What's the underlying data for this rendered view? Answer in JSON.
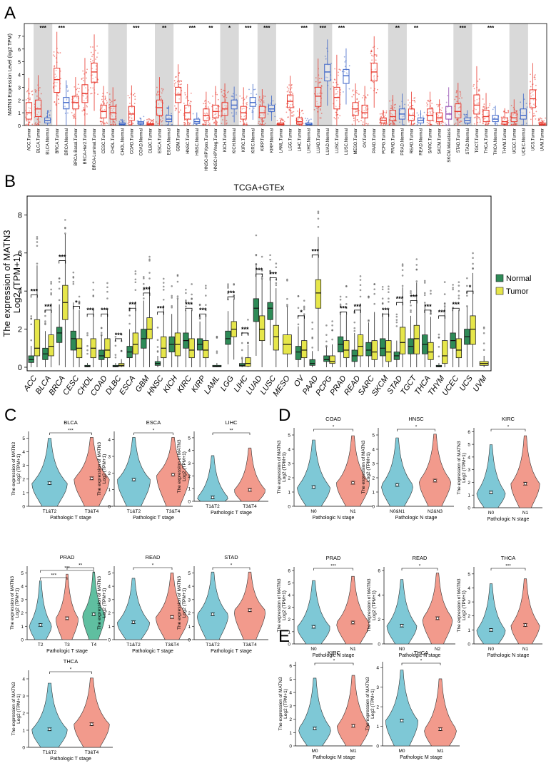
{
  "panel_labels": {
    "a": "A",
    "b": "B",
    "c": "C",
    "d": "D",
    "e": "E"
  },
  "colors": {
    "tumor_a": "#e8392e",
    "normal_a": "#3a63c7",
    "skcm_meta": "#8e44ad",
    "shade": "#d9d9d9",
    "normal_b": "#2e8b57",
    "tumor_b": "#e6e64a",
    "violin_blue": "#7ec8d6",
    "violin_red": "#f29a8c"
  },
  "chart_data": [
    {
      "id": "A",
      "type": "box",
      "ylabel": "MATN3 Expression Level (log2 TPM)",
      "ylim": [
        0,
        8
      ],
      "yticks": [
        0,
        1,
        2,
        3,
        4,
        5,
        6,
        7
      ],
      "categories": [
        "ACC.Tumor",
        "BLCA.Tumor",
        "BLCA.Normal",
        "BRCA.Tumor",
        "BRCA.Normal",
        "BRCA-Basal.Tumor",
        "BRCA-Her2.Tumor",
        "BRCA-Luminal.Tumor",
        "CESC.Tumor",
        "CHOL.Tumor",
        "CHOL.Normal",
        "COAD.Tumor",
        "COAD.Normal",
        "DLBC.Tumor",
        "ESCA.Tumor",
        "ESCA.Normal",
        "GBM.Tumor",
        "HNSC.Tumor",
        "HNSC.Normal",
        "HNSC-HPVpos.Tumor",
        "HNSC-HPVneg.Tumor",
        "KICH.Tumor",
        "KICH.Normal",
        "KIRC.Tumor",
        "KIRC.Normal",
        "KIRP.Tumor",
        "KIRP.Normal",
        "LAML.Tumor",
        "LGG.Tumor",
        "LIHC.Tumor",
        "LIHC.Normal",
        "LUAD.Tumor",
        "LUAD.Normal",
        "LUSC.Tumor",
        "LUSC.Normal",
        "MESO.Tumor",
        "OV.Tumor",
        "PAAD.Tumor",
        "PCPG.Tumor",
        "PRAD.Tumor",
        "PRAD.Normal",
        "READ.Tumor",
        "READ.Normal",
        "SARC.Tumor",
        "SKCM.Tumor",
        "SKCM.Metastasis",
        "STAD.Tumor",
        "STAD.Normal",
        "TGCT.Tumor",
        "THCA.Tumor",
        "THCA.Normal",
        "THYM.Tumor",
        "UCEC.Tumor",
        "UCEC.Normal",
        "UCS.Tumor",
        "UVM.Tumor"
      ],
      "kind": [
        "T",
        "T",
        "N",
        "T",
        "N",
        "T",
        "T",
        "T",
        "T",
        "T",
        "N",
        "T",
        "N",
        "T",
        "T",
        "N",
        "T",
        "T",
        "N",
        "T",
        "T",
        "T",
        "N",
        "T",
        "N",
        "T",
        "N",
        "T",
        "T",
        "T",
        "N",
        "T",
        "N",
        "T",
        "N",
        "T",
        "T",
        "T",
        "T",
        "T",
        "N",
        "T",
        "N",
        "T",
        "T",
        "M",
        "T",
        "N",
        "T",
        "T",
        "N",
        "T",
        "T",
        "N",
        "T",
        "T"
      ],
      "medians": [
        1.0,
        1.3,
        0.4,
        3.6,
        1.8,
        1.8,
        2.5,
        4.2,
        1.1,
        1.0,
        0.1,
        0.9,
        0.2,
        0.1,
        1.4,
        0.5,
        2.4,
        1.0,
        0.3,
        0.8,
        1.1,
        1.3,
        1.6,
        1.0,
        1.8,
        1.0,
        1.3,
        0.1,
        1.9,
        0.3,
        0.1,
        2.3,
        4.2,
        2.2,
        3.9,
        1.3,
        1.0,
        4.2,
        0.4,
        0.7,
        0.9,
        0.8,
        0.4,
        0.8,
        0.6,
        0.9,
        1.1,
        0.4,
        1.6,
        0.7,
        0.5,
        0.3,
        0.6,
        0.8,
        2.1,
        0.1
      ],
      "q1": [
        0.5,
        0.7,
        0.2,
        2.6,
        1.3,
        1.3,
        1.8,
        3.4,
        0.6,
        0.5,
        0.05,
        0.4,
        0.1,
        0.05,
        0.8,
        0.3,
        1.8,
        0.5,
        0.15,
        0.4,
        0.6,
        0.8,
        1.3,
        0.5,
        1.5,
        0.6,
        1.1,
        0.05,
        1.4,
        0.1,
        0.05,
        1.5,
        3.5,
        1.3,
        3.3,
        0.8,
        0.6,
        3.5,
        0.2,
        0.4,
        0.5,
        0.4,
        0.2,
        0.4,
        0.3,
        0.5,
        0.6,
        0.2,
        0.9,
        0.3,
        0.3,
        0.1,
        0.3,
        0.5,
        1.4,
        0.05
      ],
      "q3": [
        1.8,
        2.0,
        0.6,
        4.5,
        2.2,
        2.3,
        3.2,
        4.9,
        1.6,
        1.5,
        0.2,
        1.5,
        0.3,
        0.15,
        2.0,
        0.8,
        3.0,
        1.6,
        0.5,
        1.3,
        1.6,
        1.8,
        2.0,
        1.5,
        2.2,
        1.5,
        1.6,
        0.2,
        2.4,
        0.6,
        0.2,
        3.0,
        4.8,
        3.0,
        4.4,
        1.8,
        1.6,
        4.9,
        0.6,
        1.2,
        1.3,
        1.3,
        0.6,
        1.3,
        1.0,
        1.5,
        1.7,
        0.6,
        2.4,
        1.2,
        0.8,
        0.6,
        1.0,
        1.3,
        2.8,
        0.2
      ],
      "significance_labels": [
        "***",
        "***",
        "***",
        "**",
        "***",
        "**",
        "*",
        "***",
        "***",
        "***",
        "***",
        "***",
        "**",
        "**",
        "***",
        "***"
      ],
      "significance_positions": [
        "BLCA",
        "BRCA",
        "COAD",
        "ESCA",
        "HNSC",
        "HNSC-HPV",
        "KICH",
        "KIRC",
        "KIRP",
        "LIHC",
        "LUAD",
        "LUSC",
        "PRAD",
        "READ",
        "STAD",
        "THCA"
      ]
    },
    {
      "id": "B",
      "type": "box",
      "title": "TCGA+GTEx",
      "ylabel_line1": "The expression of MATN3",
      "ylabel_line2": "Log2 (TPM+1)",
      "ylim": [
        0,
        8.8
      ],
      "yticks": [
        0,
        2,
        4,
        6,
        8
      ],
      "legend": [
        "Normal",
        "Tumor"
      ],
      "categories": [
        "ACC",
        "BLCA",
        "BRCA",
        "CESC",
        "CHOL",
        "COAD",
        "DLBC",
        "ESCA",
        "GBM",
        "HNSC",
        "KICH",
        "KIRC",
        "KIRP",
        "LAML",
        "LGG",
        "LIHC",
        "LUAD",
        "LUSC",
        "MESO",
        "OV",
        "PAAD",
        "PCPG",
        "PRAD",
        "READ",
        "SARC",
        "SKCM",
        "STAD",
        "TGCT",
        "THCA",
        "THYM",
        "UCEC",
        "UCS",
        "UVM"
      ],
      "normal_median": [
        0.4,
        0.7,
        1.8,
        1.5,
        0.05,
        0.6,
        0.05,
        0.8,
        1.5,
        0.2,
        1.2,
        1.4,
        1.2,
        0.05,
        1.5,
        0.1,
        3.1,
        3.1,
        null,
        0.8,
        0.2,
        0.4,
        1.2,
        0.6,
        0.9,
        1.0,
        0.6,
        1.1,
        1.2,
        0.05,
        1.4,
        1.6,
        null
      ],
      "normal_q1": [
        0.25,
        0.4,
        1.3,
        0.9,
        0.02,
        0.4,
        0.02,
        0.5,
        1.0,
        0.1,
        0.8,
        1.0,
        0.9,
        0.02,
        1.2,
        0.05,
        2.4,
        2.5,
        null,
        0.4,
        0.1,
        0.3,
        0.8,
        0.3,
        0.6,
        0.6,
        0.4,
        0.7,
        0.7,
        0.02,
        1.0,
        1.2,
        null
      ],
      "normal_q3": [
        0.6,
        1.0,
        2.1,
        1.9,
        0.1,
        0.9,
        0.1,
        1.1,
        2.0,
        0.3,
        1.6,
        1.8,
        1.5,
        0.1,
        1.9,
        0.2,
        3.6,
        3.4,
        null,
        1.1,
        0.4,
        0.6,
        1.6,
        0.9,
        1.3,
        1.5,
        0.8,
        1.5,
        1.7,
        0.1,
        1.8,
        2.0,
        null
      ],
      "tumor_median": [
        1.0,
        1.1,
        3.4,
        1.0,
        1.0,
        0.9,
        0.1,
        1.2,
        2.0,
        1.0,
        1.2,
        0.9,
        0.9,
        null,
        2.0,
        0.2,
        2.0,
        1.6,
        1.2,
        0.9,
        3.9,
        0.3,
        0.9,
        1.1,
        0.8,
        0.8,
        1.3,
        1.5,
        0.8,
        0.6,
        0.9,
        2.0,
        0.2
      ],
      "tumor_q1": [
        0.6,
        0.6,
        2.5,
        0.5,
        0.5,
        0.5,
        0.05,
        0.7,
        1.5,
        0.5,
        0.6,
        0.5,
        0.5,
        null,
        1.6,
        0.05,
        1.4,
        0.9,
        0.7,
        0.5,
        3.1,
        0.2,
        0.5,
        0.6,
        0.4,
        0.3,
        0.7,
        0.7,
        0.4,
        0.2,
        0.5,
        1.2,
        0.1
      ],
      "tumor_q3": [
        2.5,
        1.7,
        4.3,
        1.5,
        1.5,
        1.5,
        0.2,
        1.8,
        2.6,
        1.6,
        1.8,
        1.5,
        1.4,
        null,
        2.4,
        0.5,
        2.7,
        2.2,
        1.7,
        1.4,
        4.6,
        0.6,
        1.4,
        1.7,
        1.4,
        1.4,
        2.1,
        2.2,
        1.3,
        1.4,
        1.5,
        2.7,
        0.3
      ],
      "sig": [
        "***",
        "***",
        "***",
        "*",
        "***",
        "***",
        "***",
        "***",
        "***",
        "***",
        "",
        "***",
        "***",
        "",
        "***",
        "***",
        "***",
        "***",
        "",
        "*",
        "***",
        "",
        "***",
        "***",
        "",
        "***",
        "***",
        "***",
        "***",
        "***",
        "***",
        "*",
        ""
      ]
    },
    {
      "id": "C1",
      "type": "violin",
      "title": "BLCA",
      "xlabel": "Pathologic T stage",
      "groups": [
        "T1&T2",
        "T3&T4"
      ],
      "means": [
        1.7,
        2.05
      ],
      "ylim": [
        0,
        5.5
      ],
      "yticks": [
        0,
        1,
        2,
        3,
        4,
        5
      ],
      "sig": [
        "***"
      ]
    },
    {
      "id": "C2",
      "type": "violin",
      "title": "ESCA",
      "xlabel": "Pathologic T stage",
      "groups": [
        "T1&T2",
        "T3&T4"
      ],
      "means": [
        1.6,
        1.9
      ],
      "ylim": [
        0,
        4.5
      ],
      "yticks": [
        0,
        1,
        2,
        3,
        4
      ],
      "sig": [
        "*"
      ]
    },
    {
      "id": "C3",
      "type": "violin",
      "title": "LIHC",
      "xlabel": "Pathologic T stage",
      "groups": [
        "T1&T2",
        "T3&T4"
      ],
      "means": [
        0.3,
        0.9
      ],
      "ylim": [
        0,
        5.5
      ],
      "yticks": [
        0,
        1,
        2,
        3,
        4,
        5
      ],
      "sig": [
        "**"
      ]
    },
    {
      "id": "C4",
      "type": "violin",
      "title": "PRAD",
      "xlabel": "Pathologic T stage",
      "groups": [
        "T2",
        "T3",
        "T4"
      ],
      "means": [
        1.1,
        1.6,
        1.9
      ],
      "ylim": [
        0,
        5.5
      ],
      "yticks": [
        0,
        1,
        2,
        3,
        4,
        5
      ],
      "sig": [
        "***",
        "***",
        "**"
      ]
    },
    {
      "id": "C5",
      "type": "violin",
      "title": "READ",
      "xlabel": "Pathologic T stage",
      "groups": [
        "T1&T2",
        "T3&T4"
      ],
      "means": [
        1.3,
        1.7
      ],
      "ylim": [
        0,
        5.5
      ],
      "yticks": [
        0,
        1,
        2,
        3,
        4,
        5
      ],
      "sig": [
        "*"
      ]
    },
    {
      "id": "C6",
      "type": "violin",
      "title": "STAD",
      "xlabel": "Pathologic T stage",
      "groups": [
        "T1&T2",
        "T3&T4"
      ],
      "means": [
        1.9,
        2.2
      ],
      "ylim": [
        0,
        5.5
      ],
      "yticks": [
        0,
        1,
        2,
        3,
        4,
        5
      ],
      "sig": [
        "*"
      ]
    },
    {
      "id": "C7",
      "type": "violin",
      "title": "THCA",
      "xlabel": "Pathologic T stage",
      "groups": [
        "T1&T2",
        "T3&T4"
      ],
      "means": [
        1.05,
        1.35
      ],
      "ylim": [
        0,
        4.5
      ],
      "yticks": [
        0,
        1,
        2,
        3,
        4
      ],
      "sig": [
        "*"
      ]
    },
    {
      "id": "D1",
      "type": "violin",
      "title": "COAD",
      "xlabel": "Pathologic N stage",
      "groups": [
        "N0",
        "N1"
      ],
      "means": [
        1.35,
        1.65
      ],
      "ylim": [
        0,
        5.5
      ],
      "yticks": [
        0,
        1,
        2,
        3,
        4,
        5
      ],
      "sig": [
        "*"
      ]
    },
    {
      "id": "D2",
      "type": "violin",
      "title": "HNSC",
      "xlabel": "Pathologic N stage",
      "groups": [
        "N0&N1",
        "N2&N3"
      ],
      "means": [
        1.5,
        1.8
      ],
      "ylim": [
        0,
        5.5
      ],
      "yticks": [
        0,
        1,
        2,
        3,
        4,
        5
      ],
      "sig": [
        "*"
      ]
    },
    {
      "id": "D3",
      "type": "violin",
      "title": "KIRC",
      "xlabel": "Pathologic N stage",
      "groups": [
        "N0",
        "N1"
      ],
      "means": [
        1.2,
        1.9
      ],
      "ylim": [
        0,
        6.3
      ],
      "yticks": [
        0,
        1,
        2,
        3,
        4,
        5,
        6
      ],
      "sig": [
        "*"
      ]
    },
    {
      "id": "D4",
      "type": "violin",
      "title": "PRAD",
      "xlabel": "Pathologic N stage",
      "groups": [
        "N0",
        "N1"
      ],
      "means": [
        1.4,
        1.75
      ],
      "ylim": [
        0,
        6.3
      ],
      "yticks": [
        0,
        1,
        2,
        3,
        4,
        5,
        6
      ],
      "sig": [
        "***"
      ]
    },
    {
      "id": "D5",
      "type": "violin",
      "title": "READ",
      "xlabel": "Pathologic N stage",
      "groups": [
        "N0",
        "N2"
      ],
      "means": [
        1.5,
        2.1
      ],
      "ylim": [
        0,
        6.3
      ],
      "yticks": [
        0,
        2,
        4,
        6
      ],
      "sig": [
        "*"
      ]
    },
    {
      "id": "D6",
      "type": "violin",
      "title": "THCA",
      "xlabel": "Pathologic N stage",
      "groups": [
        "N0",
        "N1"
      ],
      "means": [
        1.0,
        1.35
      ],
      "ylim": [
        0,
        5.5
      ],
      "yticks": [
        0,
        1,
        2,
        3,
        4,
        5
      ],
      "sig": [
        "***"
      ]
    },
    {
      "id": "E1",
      "type": "violin",
      "title": "KIRC",
      "xlabel": "Pathologic M stage",
      "groups": [
        "M0",
        "M1"
      ],
      "means": [
        1.3,
        1.5
      ],
      "ylim": [
        0,
        6.3
      ],
      "yticks": [
        0,
        1,
        2,
        3,
        4,
        5,
        6
      ],
      "sig": [
        "*"
      ]
    },
    {
      "id": "E2",
      "type": "violin",
      "title": "THCA",
      "xlabel": "Pathologic M stage",
      "groups": [
        "M0",
        "M1"
      ],
      "means": [
        1.3,
        0.85
      ],
      "ylim": [
        0,
        4.3
      ],
      "yticks": [
        0,
        1,
        2,
        3,
        4
      ],
      "sig": [
        "*"
      ]
    }
  ],
  "violin_ylabel_1": "The expression of MATN3",
  "violin_ylabel_2": "Log2 (TPM+1)"
}
